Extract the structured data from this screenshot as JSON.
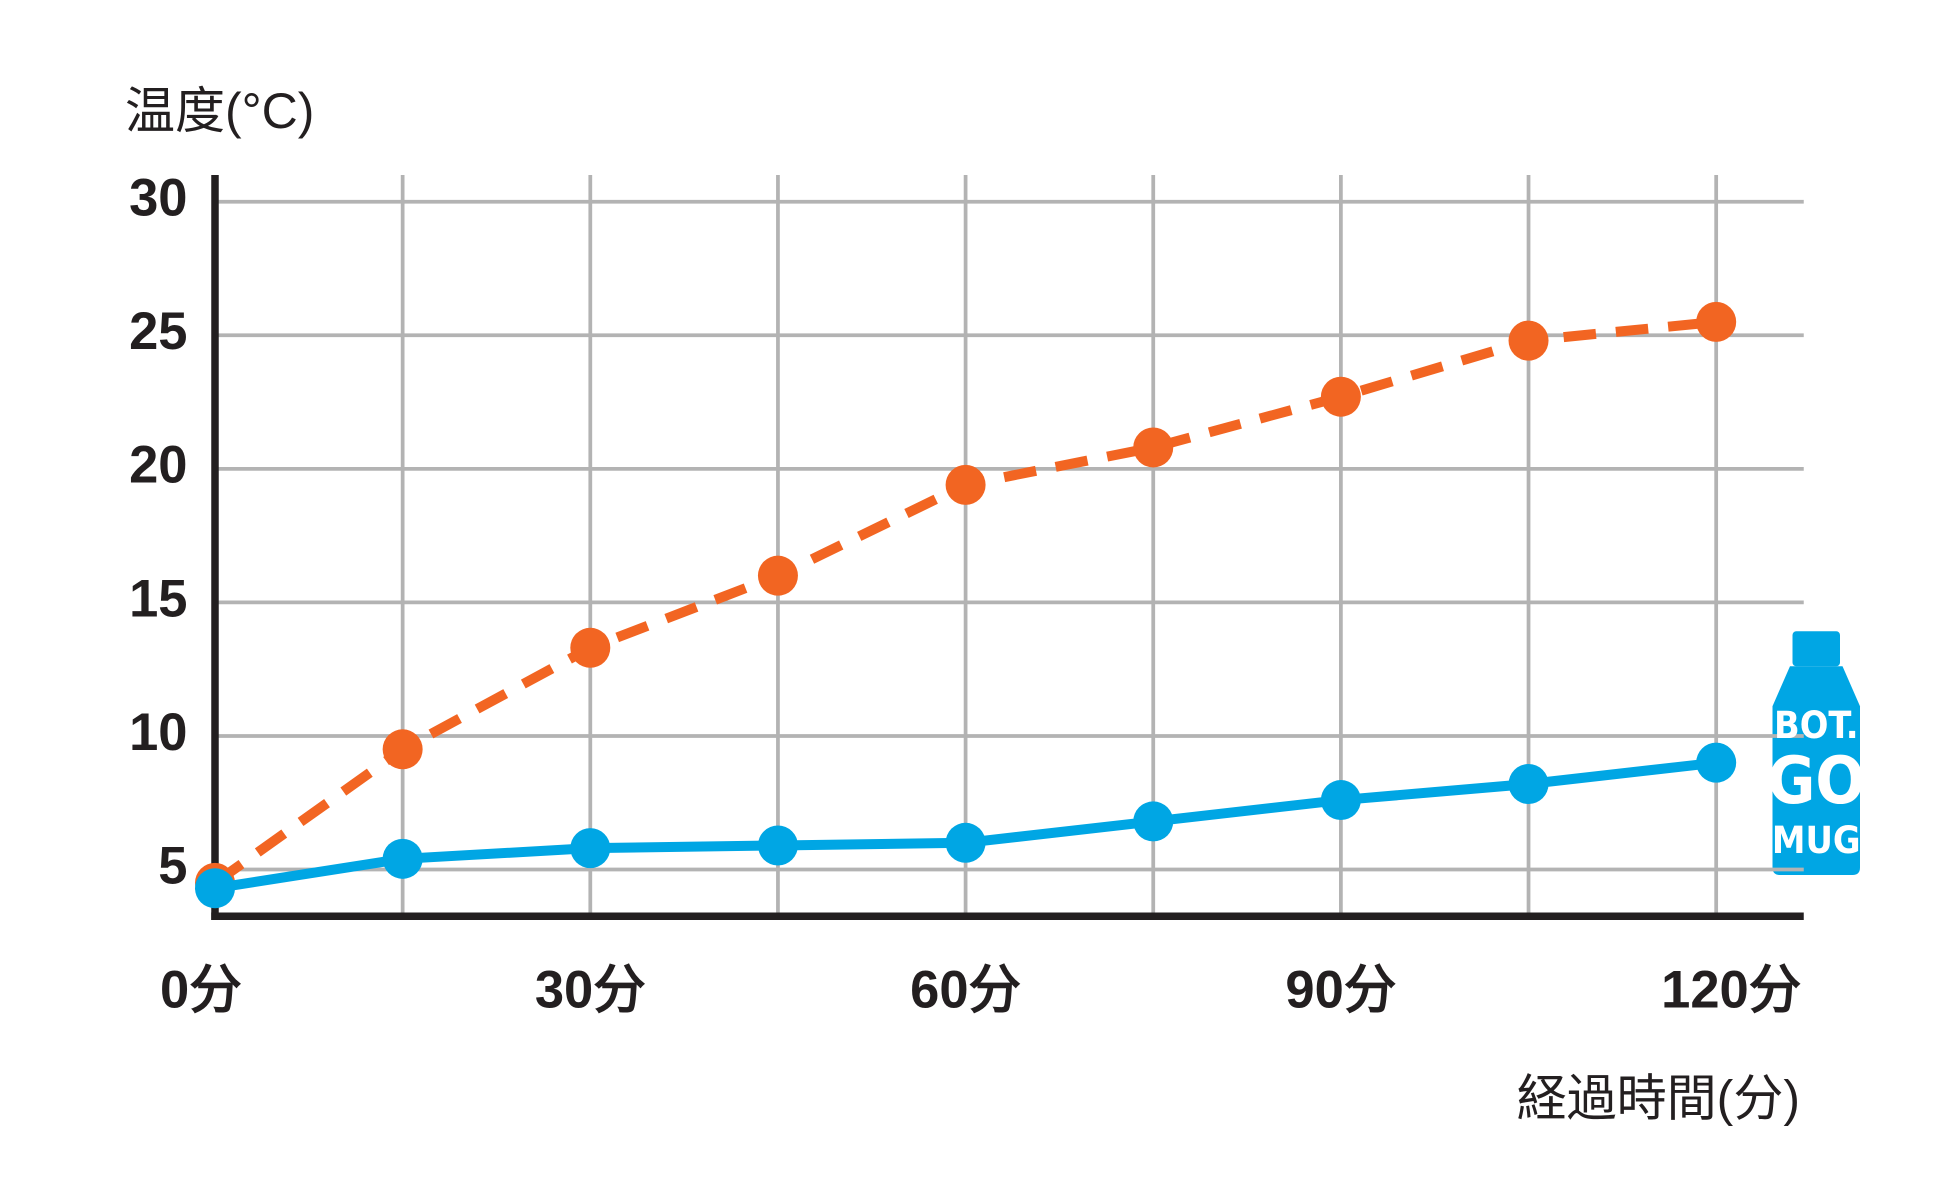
{
  "chart_data": {
    "type": "line",
    "y_label": "温度(°C)",
    "x_label": "経過時間(分)",
    "x": [
      0,
      15,
      30,
      45,
      60,
      75,
      90,
      105,
      120
    ],
    "series": [
      {
        "color": "#f26522",
        "dashed": true,
        "values": [
          4.5,
          9.5,
          13.3,
          16.0,
          19.4,
          20.8,
          22.7,
          24.8,
          25.5
        ]
      },
      {
        "color": "#00a6e4",
        "dashed": false,
        "values": [
          4.3,
          5.4,
          5.8,
          5.9,
          6.0,
          6.8,
          7.6,
          8.2,
          9.0
        ]
      }
    ],
    "xlim": [
      0,
      127
    ],
    "ylim": [
      3.25,
      31
    ],
    "xticks": [
      {
        "value": 0,
        "label": "0分"
      },
      {
        "value": 30,
        "label": "30分"
      },
      {
        "value": 60,
        "label": "60分"
      },
      {
        "value": 90,
        "label": "90分"
      },
      {
        "value": 120,
        "label": "120分"
      }
    ],
    "minor_xticks": [
      15,
      45,
      75,
      105
    ],
    "yticks": [
      5,
      10,
      15,
      20,
      25,
      30
    ],
    "grid": true
  },
  "logo": {
    "lines": [
      "BOT.",
      "GO",
      "MUG"
    ]
  }
}
